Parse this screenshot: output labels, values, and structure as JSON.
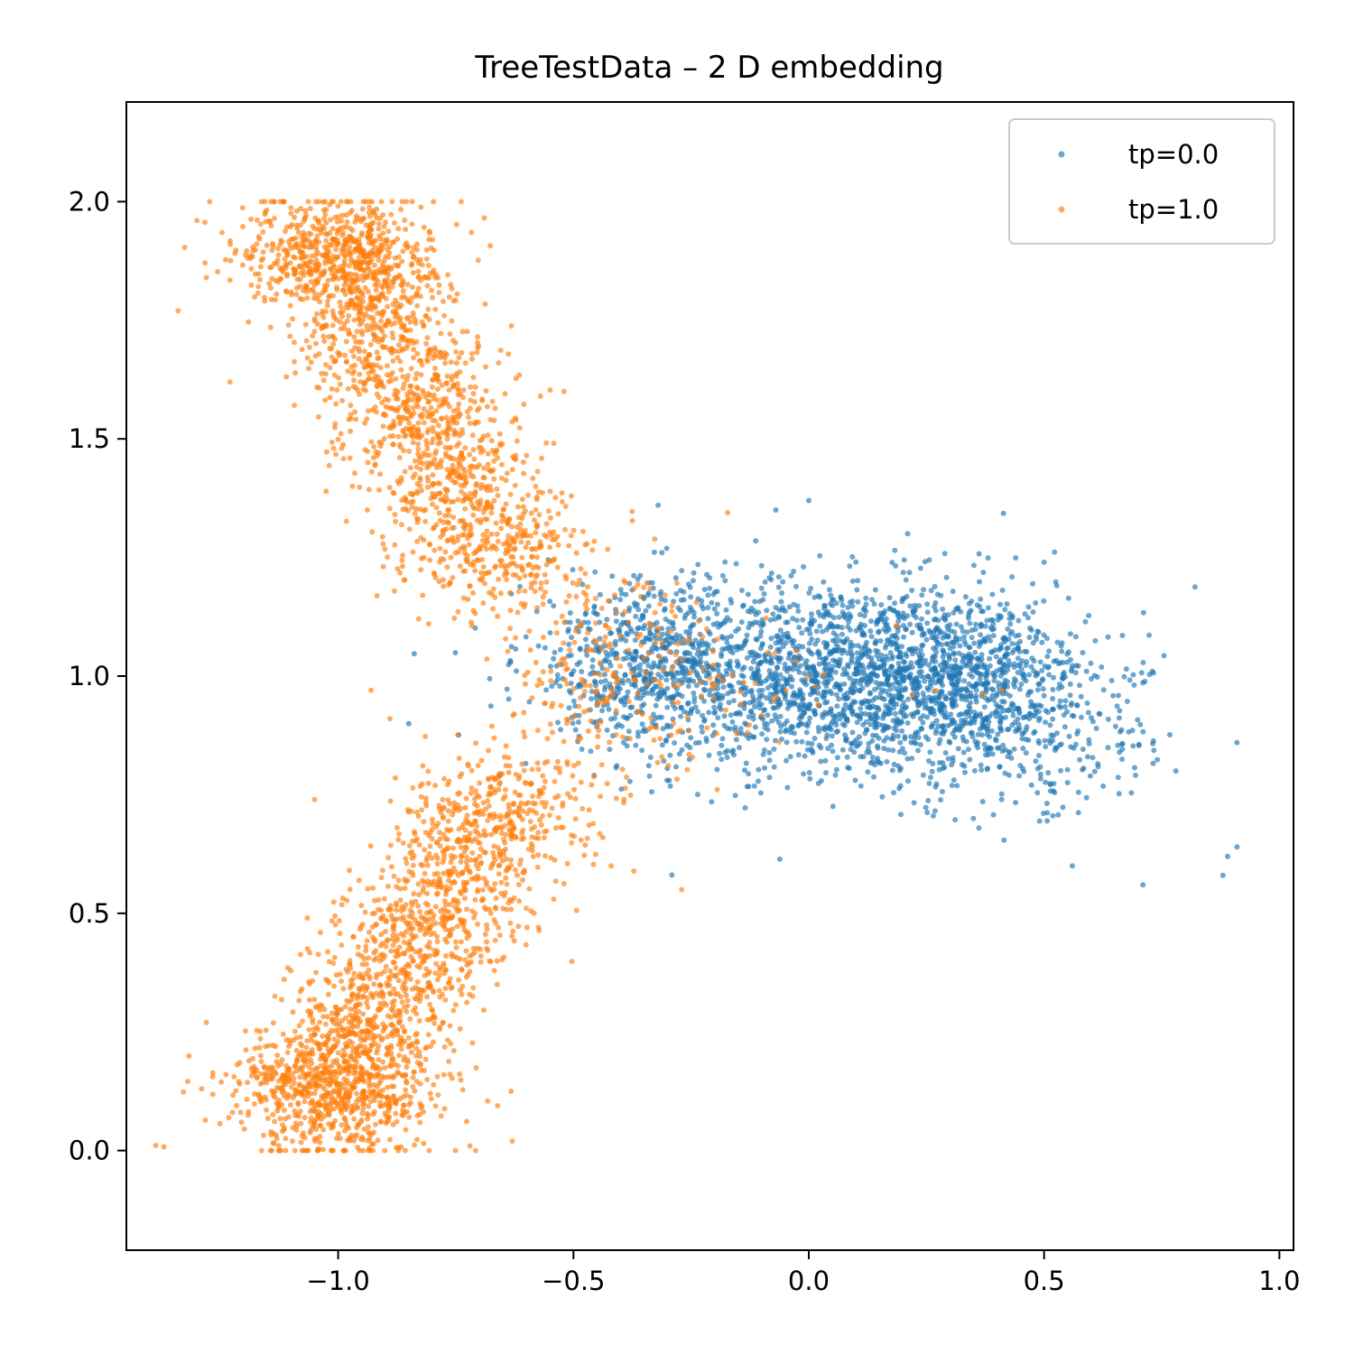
{
  "chart_data": {
    "type": "scatter",
    "title": "TreeTestData – 2 D embedding",
    "xlabel": "",
    "ylabel": "",
    "xlim": [
      -1.45,
      1.03
    ],
    "ylim": [
      -0.21,
      2.21
    ],
    "x_ticks": [
      -1.0,
      -0.5,
      0.0,
      0.5,
      1.0
    ],
    "x_tick_labels": [
      "−1.0",
      "−0.5",
      "0.0",
      "0.5",
      "1.0"
    ],
    "y_ticks": [
      0.0,
      0.5,
      1.0,
      1.5,
      2.0
    ],
    "y_tick_labels": [
      "0.0",
      "0.5",
      "1.0",
      "1.5",
      "2.0"
    ],
    "grid": false,
    "legend_position": "top-right",
    "marker_alpha": 0.65,
    "series": [
      {
        "name": "tp=0.0",
        "color": "#1f77b4",
        "description_of_distribution": "dense horizontal cloud centered near (0.1, 1.0), x from about -0.65 to 0.92, y from about 0.55 to 1.37",
        "clusters": [
          {
            "cx": 0.05,
            "cy": 1.0,
            "sx": 0.22,
            "sy": 0.1,
            "n": 1700
          },
          {
            "cx": 0.35,
            "cy": 0.97,
            "sx": 0.13,
            "sy": 0.1,
            "n": 700
          },
          {
            "cx": -0.35,
            "cy": 1.03,
            "sx": 0.13,
            "sy": 0.09,
            "n": 500
          },
          {
            "cx": 0.55,
            "cy": 0.86,
            "sx": 0.12,
            "sy": 0.09,
            "n": 120
          }
        ],
        "outliers": [
          {
            "x": 0.91,
            "y": 0.86
          },
          {
            "x": 0.88,
            "y": 0.58
          },
          {
            "x": 0.91,
            "y": 0.64
          },
          {
            "x": 0.89,
            "y": 0.62
          },
          {
            "x": 0.78,
            "y": 0.8
          },
          {
            "x": 0.71,
            "y": 0.56
          },
          {
            "x": 0.73,
            "y": 1.01
          },
          {
            "x": 0.56,
            "y": 0.6
          },
          {
            "x": -0.85,
            "y": 0.9
          },
          {
            "x": 0.0,
            "y": 1.37
          },
          {
            "x": -0.07,
            "y": 1.35
          },
          {
            "x": 0.21,
            "y": 1.3
          },
          {
            "x": -0.32,
            "y": 1.36
          },
          {
            "x": 0.5,
            "y": 1.24
          }
        ]
      },
      {
        "name": "tp=1.0",
        "color": "#ff7f0e",
        "description_of_distribution": "upper-left arm from (-1.0, 2.0) down to (-0.6, 1.15) and lower-left arm from (-1.1, 0.0) up to (-0.6, 0.8), plus scattered points in the central blue cloud",
        "arms": [
          {
            "from": [
              -1.0,
              1.9
            ],
            "to": [
              -0.63,
              1.18
            ],
            "width": 0.09,
            "n": 1500
          },
          {
            "from": [
              -1.02,
              0.12
            ],
            "to": [
              -0.62,
              0.78
            ],
            "width": 0.09,
            "n": 1500
          }
        ],
        "clusters": [
          {
            "cx": -1.0,
            "cy": 1.9,
            "sx": 0.1,
            "sy": 0.06,
            "n": 500
          },
          {
            "cx": -1.0,
            "cy": 0.12,
            "sx": 0.12,
            "sy": 0.07,
            "n": 600
          },
          {
            "cx": -0.45,
            "cy": 1.0,
            "sx": 0.1,
            "sy": 0.14,
            "n": 220
          },
          {
            "cx": -0.2,
            "cy": 0.97,
            "sx": 0.12,
            "sy": 0.08,
            "n": 60
          }
        ],
        "outliers": [
          {
            "x": -1.34,
            "y": 1.77
          },
          {
            "x": -1.3,
            "y": 1.96
          },
          {
            "x": -1.28,
            "y": 1.84
          },
          {
            "x": -1.23,
            "y": 1.62
          },
          {
            "x": -0.57,
            "y": 1.59
          },
          {
            "x": -0.52,
            "y": 1.6
          },
          {
            "x": -0.93,
            "y": 0.97
          },
          {
            "x": -0.89,
            "y": 0.91
          },
          {
            "x": -0.27,
            "y": 0.55
          },
          {
            "x": -0.63,
            "y": 0.02
          },
          {
            "x": -0.72,
            "y": 0.01
          },
          {
            "x": -1.29,
            "y": 0.13
          },
          {
            "x": -1.28,
            "y": 0.27
          },
          {
            "x": 0.02,
            "y": 0.94
          },
          {
            "x": 0.22,
            "y": 0.96
          },
          {
            "x": 0.27,
            "y": 0.97
          },
          {
            "x": 0.37,
            "y": 0.96
          },
          {
            "x": 0.41,
            "y": 0.97
          },
          {
            "x": -1.05,
            "y": 0.74
          },
          {
            "x": -0.42,
            "y": 0.6
          }
        ]
      }
    ]
  }
}
